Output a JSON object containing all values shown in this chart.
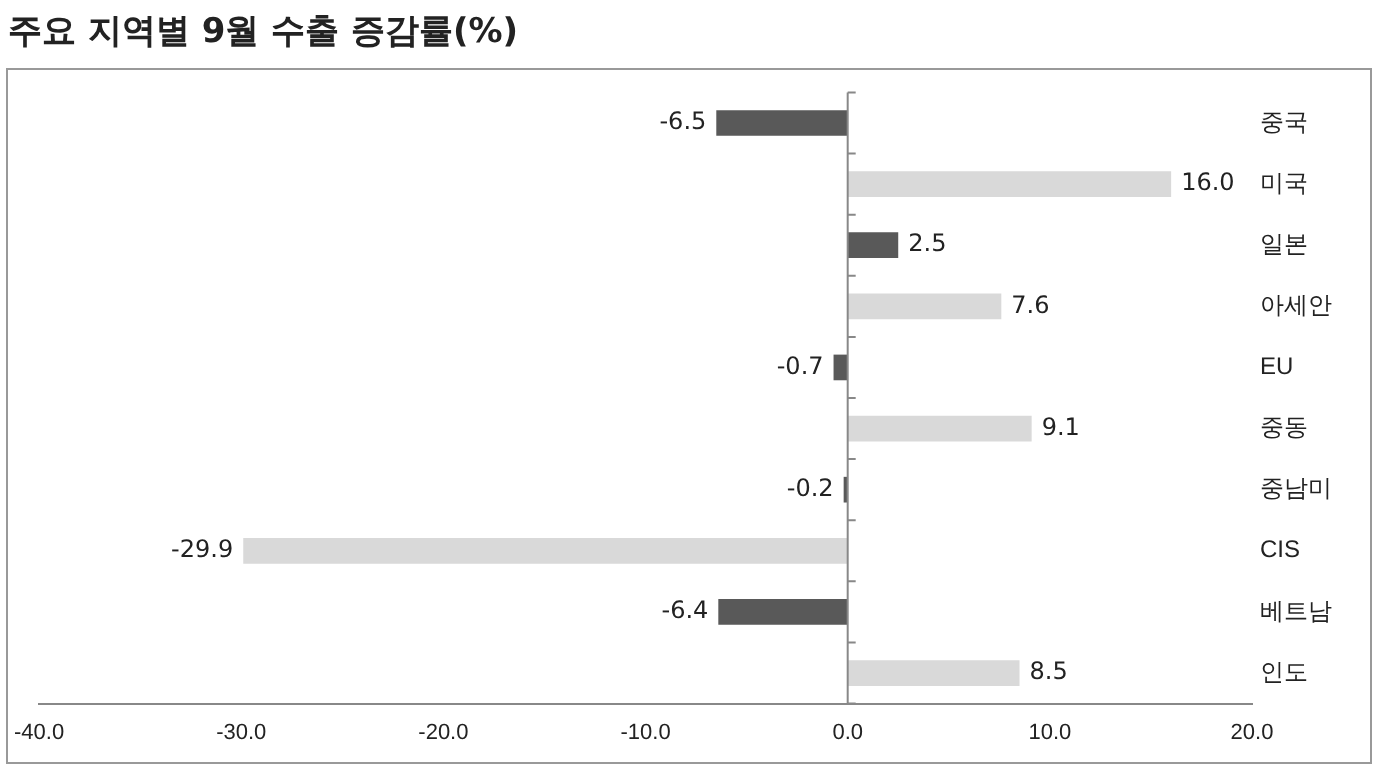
{
  "chart_data": {
    "type": "bar",
    "orientation": "horizontal",
    "title": "주요 지역별 9월 수출 증감률(%)",
    "categories": [
      "중국",
      "미국",
      "일본",
      "아세안",
      "EU",
      "중동",
      "중남미",
      "CIS",
      "베트남",
      "인도"
    ],
    "values": [
      -6.5,
      16.0,
      2.5,
      7.6,
      -0.7,
      9.1,
      -0.2,
      -29.9,
      -6.4,
      8.5
    ],
    "value_labels": [
      "-6.5",
      "16.0",
      "2.5",
      "7.6",
      "-0.7",
      "9.1",
      "-0.2",
      "-29.9",
      "-6.4",
      "8.5"
    ],
    "colors": [
      "#595959",
      "#d9d9d9",
      "#595959",
      "#d9d9d9",
      "#595959",
      "#d9d9d9",
      "#595959",
      "#d9d9d9",
      "#595959",
      "#d9d9d9"
    ],
    "xlim": [
      -40,
      20
    ],
    "xticks": [
      {
        "value": -40,
        "label": "-40.0"
      },
      {
        "value": -30,
        "label": "-30.0"
      },
      {
        "value": -20,
        "label": "-20.0"
      },
      {
        "value": -10,
        "label": "-10.0"
      },
      {
        "value": 0,
        "label": "0.0"
      },
      {
        "value": 10,
        "label": "10.0"
      },
      {
        "value": 20,
        "label": "20.0"
      }
    ],
    "legend": false
  }
}
